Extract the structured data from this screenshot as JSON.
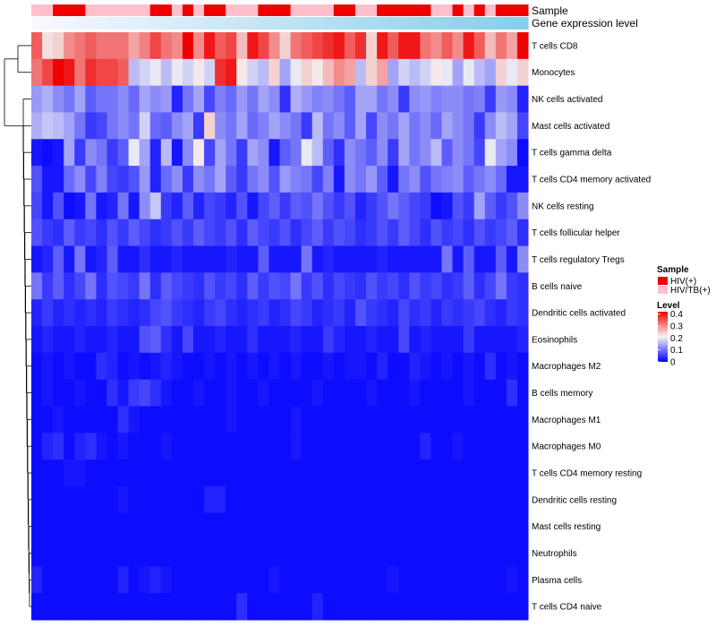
{
  "chart_data": {
    "type": "heatmap",
    "annotation_labels": [
      "Sample",
      "Gene expression level"
    ],
    "row_labels": [
      "T cells CD8",
      "Monocytes",
      "NK cells activated",
      "Mast cells activated",
      "T cells gamma delta",
      "T cells CD4 memory activated",
      "NK cells resting",
      "T cells follicular helper",
      "T cells regulatory  Tregs",
      "B cells naive",
      "Dendritic cells activated",
      "Eosinophils",
      "Macrophages M2",
      "B cells memory",
      "Macrophages M1",
      "Macrophages M0",
      "T cells CD4 memory resting",
      "Dendritic cells resting",
      "Mast cells resting",
      "Neutrophils",
      "Plasma cells",
      "T cells CD4 naive"
    ],
    "n_columns": 46,
    "sample_annotation": [
      "HIV/TB(+)",
      "HIV/TB(+)",
      "HIV(+)",
      "HIV(+)",
      "HIV(+)",
      "HIV/TB(+)",
      "HIV/TB(+)",
      "HIV/TB(+)",
      "HIV/TB(+)",
      "HIV/TB(+)",
      "HIV/TB(+)",
      "HIV(+)",
      "HIV(+)",
      "HIV/TB(+)",
      "HIV(+)",
      "HIV/TB(+)",
      "HIV(+)",
      "HIV(+)",
      "HIV/TB(+)",
      "HIV/TB(+)",
      "HIV/TB(+)",
      "HIV(+)",
      "HIV(+)",
      "HIV(+)",
      "HIV/TB(+)",
      "HIV/TB(+)",
      "HIV/TB(+)",
      "HIV/TB(+)",
      "HIV(+)",
      "HIV(+)",
      "HIV/TB(+)",
      "HIV/TB(+)",
      "HIV(+)",
      "HIV(+)",
      "HIV(+)",
      "HIV(+)",
      "HIV(+)",
      "HIV/TB(+)",
      "HIV/TB(+)",
      "HIV(+)",
      "HIV/TB(+)",
      "HIV(+)",
      "HIV/TB(+)",
      "HIV(+)",
      "HIV(+)",
      "HIV(+)"
    ],
    "expression_annotation": [
      0.0,
      0.02,
      0.04,
      0.07,
      0.09,
      0.11,
      0.13,
      0.16,
      0.18,
      0.2,
      0.22,
      0.24,
      0.27,
      0.29,
      0.31,
      0.33,
      0.36,
      0.38,
      0.4,
      0.42,
      0.44,
      0.47,
      0.49,
      0.51,
      0.53,
      0.56,
      0.58,
      0.6,
      0.62,
      0.64,
      0.67,
      0.69,
      0.71,
      0.73,
      0.76,
      0.78,
      0.8,
      0.82,
      0.84,
      0.87,
      0.89,
      0.91,
      0.93,
      0.96,
      0.98,
      1.0
    ],
    "values": [
      [
        0.34,
        0.23,
        0.24,
        0.3,
        0.32,
        0.34,
        0.32,
        0.32,
        0.32,
        0.28,
        0.31,
        0.36,
        0.32,
        0.3,
        0.42,
        0.3,
        0.4,
        0.34,
        0.36,
        0.26,
        0.4,
        0.36,
        0.3,
        0.24,
        0.32,
        0.34,
        0.36,
        0.38,
        0.4,
        0.34,
        0.38,
        0.24,
        0.4,
        0.34,
        0.4,
        0.4,
        0.32,
        0.3,
        0.34,
        0.3,
        0.4,
        0.34,
        0.26,
        0.32,
        0.28,
        0.42
      ],
      [
        0.32,
        0.36,
        0.42,
        0.4,
        0.32,
        0.38,
        0.36,
        0.36,
        0.34,
        0.16,
        0.18,
        0.2,
        0.16,
        0.2,
        0.18,
        0.22,
        0.18,
        0.38,
        0.4,
        0.22,
        0.18,
        0.16,
        0.24,
        0.14,
        0.2,
        0.24,
        0.22,
        0.26,
        0.3,
        0.28,
        0.16,
        0.24,
        0.28,
        0.14,
        0.18,
        0.16,
        0.18,
        0.22,
        0.2,
        0.14,
        0.2,
        0.16,
        0.14,
        0.24,
        0.2,
        0.24
      ],
      [
        0.13,
        0.15,
        0.12,
        0.1,
        0.14,
        0.08,
        0.1,
        0.1,
        0.12,
        0.09,
        0.14,
        0.12,
        0.13,
        0.03,
        0.1,
        0.14,
        0.06,
        0.11,
        0.09,
        0.13,
        0.1,
        0.14,
        0.12,
        0.04,
        0.15,
        0.13,
        0.11,
        0.12,
        0.1,
        0.08,
        0.14,
        0.14,
        0.1,
        0.12,
        0.05,
        0.12,
        0.13,
        0.11,
        0.12,
        0.12,
        0.1,
        0.11,
        0.05,
        0.13,
        0.12,
        0.03
      ],
      [
        0.15,
        0.17,
        0.16,
        0.14,
        0.1,
        0.05,
        0.06,
        0.1,
        0.12,
        0.1,
        0.18,
        0.09,
        0.08,
        0.12,
        0.14,
        0.05,
        0.24,
        0.12,
        0.1,
        0.14,
        0.09,
        0.11,
        0.14,
        0.12,
        0.1,
        0.05,
        0.16,
        0.1,
        0.12,
        0.08,
        0.14,
        0.06,
        0.12,
        0.1,
        0.14,
        0.1,
        0.12,
        0.09,
        0.14,
        0.12,
        0.1,
        0.05,
        0.12,
        0.16,
        0.14,
        0.06
      ],
      [
        0.02,
        0.01,
        0.02,
        0.14,
        0.05,
        0.12,
        0.1,
        0.05,
        0.08,
        0.2,
        0.14,
        0.03,
        0.16,
        0.02,
        0.12,
        0.22,
        0.06,
        0.14,
        0.1,
        0.05,
        0.14,
        0.12,
        0.02,
        0.08,
        0.1,
        0.2,
        0.16,
        0.08,
        0.04,
        0.12,
        0.1,
        0.08,
        0.12,
        0.05,
        0.14,
        0.1,
        0.12,
        0.16,
        0.08,
        0.12,
        0.1,
        0.06,
        0.2,
        0.14,
        0.12,
        0.01
      ],
      [
        0.07,
        0.02,
        0.02,
        0.09,
        0.12,
        0.06,
        0.11,
        0.06,
        0.05,
        0.07,
        0.13,
        0.03,
        0.09,
        0.12,
        0.05,
        0.12,
        0.1,
        0.14,
        0.08,
        0.05,
        0.1,
        0.12,
        0.07,
        0.13,
        0.11,
        0.1,
        0.06,
        0.11,
        0.02,
        0.12,
        0.1,
        0.13,
        0.08,
        0.02,
        0.1,
        0.12,
        0.07,
        0.1,
        0.11,
        0.12,
        0.08,
        0.1,
        0.12,
        0.09,
        0.02,
        0.02
      ],
      [
        0.06,
        0.02,
        0.07,
        0.01,
        0.02,
        0.1,
        0.02,
        0.03,
        0.1,
        0.02,
        0.12,
        0.17,
        0.05,
        0.03,
        0.08,
        0.03,
        0.06,
        0.05,
        0.03,
        0.07,
        0.02,
        0.06,
        0.08,
        0.05,
        0.08,
        0.07,
        0.1,
        0.07,
        0.05,
        0.07,
        0.03,
        0.05,
        0.07,
        0.1,
        0.08,
        0.06,
        0.05,
        0.01,
        0.02,
        0.07,
        0.05,
        0.14,
        0.08,
        0.05,
        0.07,
        0.12
      ],
      [
        0.07,
        0.05,
        0.04,
        0.08,
        0.05,
        0.06,
        0.04,
        0.07,
        0.05,
        0.08,
        0.06,
        0.04,
        0.05,
        0.07,
        0.05,
        0.08,
        0.06,
        0.05,
        0.07,
        0.04,
        0.08,
        0.06,
        0.05,
        0.07,
        0.04,
        0.06,
        0.08,
        0.05,
        0.07,
        0.06,
        0.04,
        0.05,
        0.07,
        0.05,
        0.08,
        0.06,
        0.04,
        0.07,
        0.05,
        0.06,
        0.04,
        0.07,
        0.05,
        0.06,
        0.08,
        0.04
      ],
      [
        0.02,
        0.03,
        0.08,
        0.02,
        0.1,
        0.02,
        0.03,
        0.08,
        0.02,
        0.02,
        0.04,
        0.02,
        0.02,
        0.03,
        0.02,
        0.02,
        0.02,
        0.02,
        0.03,
        0.02,
        0.02,
        0.08,
        0.02,
        0.02,
        0.02,
        0.1,
        0.02,
        0.03,
        0.02,
        0.02,
        0.02,
        0.02,
        0.03,
        0.02,
        0.02,
        0.02,
        0.02,
        0.02,
        0.1,
        0.02,
        0.08,
        0.02,
        0.02,
        0.08,
        0.02,
        0.12
      ],
      [
        0.1,
        0.05,
        0.08,
        0.04,
        0.06,
        0.1,
        0.04,
        0.07,
        0.06,
        0.05,
        0.1,
        0.04,
        0.08,
        0.06,
        0.05,
        0.04,
        0.07,
        0.05,
        0.06,
        0.04,
        0.08,
        0.05,
        0.07,
        0.06,
        0.1,
        0.05,
        0.07,
        0.04,
        0.06,
        0.05,
        0.04,
        0.07,
        0.05,
        0.06,
        0.04,
        0.07,
        0.05,
        0.06,
        0.04,
        0.05,
        0.08,
        0.04,
        0.06,
        0.1,
        0.05,
        0.04
      ],
      [
        0.03,
        0.05,
        0.03,
        0.04,
        0.03,
        0.04,
        0.03,
        0.05,
        0.04,
        0.03,
        0.04,
        0.06,
        0.07,
        0.05,
        0.04,
        0.03,
        0.05,
        0.06,
        0.04,
        0.03,
        0.04,
        0.05,
        0.03,
        0.04,
        0.06,
        0.05,
        0.03,
        0.04,
        0.05,
        0.03,
        0.07,
        0.05,
        0.04,
        0.03,
        0.06,
        0.04,
        0.05,
        0.03,
        0.05,
        0.04,
        0.05,
        0.06,
        0.04,
        0.03,
        0.05,
        0.04
      ],
      [
        0.02,
        0.03,
        0.02,
        0.02,
        0.03,
        0.02,
        0.02,
        0.03,
        0.02,
        0.02,
        0.07,
        0.08,
        0.04,
        0.02,
        0.06,
        0.02,
        0.02,
        0.03,
        0.02,
        0.02,
        0.04,
        0.02,
        0.02,
        0.02,
        0.03,
        0.02,
        0.02,
        0.05,
        0.03,
        0.02,
        0.02,
        0.03,
        0.02,
        0.02,
        0.06,
        0.02,
        0.03,
        0.02,
        0.02,
        0.02,
        0.05,
        0.02,
        0.02,
        0.02,
        0.02,
        0.03
      ],
      [
        0.01,
        0.02,
        0.01,
        0.02,
        0.01,
        0.01,
        0.04,
        0.03,
        0.01,
        0.02,
        0.01,
        0.02,
        0.03,
        0.02,
        0.01,
        0.01,
        0.02,
        0.01,
        0.02,
        0.01,
        0.02,
        0.01,
        0.02,
        0.01,
        0.02,
        0.01,
        0.01,
        0.02,
        0.01,
        0.02,
        0.02,
        0.01,
        0.03,
        0.01,
        0.01,
        0.03,
        0.02,
        0.01,
        0.02,
        0.01,
        0.02,
        0.01,
        0.04,
        0.01,
        0.02,
        0.01
      ],
      [
        0.01,
        0.02,
        0.01,
        0.01,
        0.02,
        0.01,
        0.01,
        0.04,
        0.02,
        0.05,
        0.06,
        0.04,
        0.02,
        0.01,
        0.01,
        0.02,
        0.01,
        0.01,
        0.02,
        0.01,
        0.01,
        0.02,
        0.01,
        0.01,
        0.01,
        0.01,
        0.02,
        0.01,
        0.01,
        0.01,
        0.01,
        0.02,
        0.01,
        0.01,
        0.01,
        0.02,
        0.01,
        0.01,
        0.01,
        0.01,
        0.02,
        0.01,
        0.01,
        0.01,
        0.04,
        0.01
      ],
      [
        0.01,
        0.01,
        0.02,
        0.01,
        0.01,
        0.01,
        0.01,
        0.01,
        0.04,
        0.02,
        0.01,
        0.01,
        0.01,
        0.01,
        0.01,
        0.01,
        0.01,
        0.01,
        0.02,
        0.01,
        0.01,
        0.01,
        0.01,
        0.01,
        0.02,
        0.01,
        0.01,
        0.01,
        0.01,
        0.01,
        0.01,
        0.01,
        0.01,
        0.01,
        0.01,
        0.01,
        0.01,
        0.01,
        0.01,
        0.01,
        0.01,
        0.01,
        0.01,
        0.01,
        0.01,
        0.01
      ],
      [
        0.01,
        0.03,
        0.04,
        0.01,
        0.03,
        0.04,
        0.02,
        0.01,
        0.02,
        0.01,
        0.01,
        0.01,
        0.02,
        0.01,
        0.01,
        0.01,
        0.01,
        0.01,
        0.01,
        0.01,
        0.01,
        0.01,
        0.01,
        0.01,
        0.02,
        0.01,
        0.01,
        0.01,
        0.01,
        0.01,
        0.01,
        0.01,
        0.01,
        0.01,
        0.01,
        0.01,
        0.03,
        0.01,
        0.01,
        0.02,
        0.01,
        0.01,
        0.01,
        0.01,
        0.01,
        0.01
      ],
      [
        0.01,
        0.01,
        0.01,
        0.02,
        0.02,
        0.01,
        0.01,
        0.01,
        0.01,
        0.01,
        0.01,
        0.01,
        0.01,
        0.01,
        0.01,
        0.01,
        0.01,
        0.01,
        0.01,
        0.01,
        0.01,
        0.01,
        0.01,
        0.01,
        0.01,
        0.01,
        0.01,
        0.01,
        0.01,
        0.01,
        0.01,
        0.01,
        0.01,
        0.01,
        0.01,
        0.01,
        0.01,
        0.01,
        0.01,
        0.01,
        0.01,
        0.01,
        0.01,
        0.01,
        0.01,
        0.01
      ],
      [
        0.01,
        0.01,
        0.01,
        0.01,
        0.01,
        0.01,
        0.01,
        0.01,
        0.02,
        0.01,
        0.01,
        0.01,
        0.01,
        0.01,
        0.01,
        0.01,
        0.03,
        0.03,
        0.01,
        0.01,
        0.01,
        0.01,
        0.01,
        0.01,
        0.01,
        0.01,
        0.01,
        0.01,
        0.01,
        0.01,
        0.01,
        0.01,
        0.01,
        0.01,
        0.01,
        0.01,
        0.01,
        0.01,
        0.01,
        0.01,
        0.01,
        0.01,
        0.01,
        0.01,
        0.01,
        0.01
      ],
      [
        0.01,
        0.01,
        0.01,
        0.01,
        0.01,
        0.01,
        0.01,
        0.01,
        0.01,
        0.01,
        0.01,
        0.01,
        0.01,
        0.01,
        0.01,
        0.01,
        0.01,
        0.01,
        0.01,
        0.01,
        0.01,
        0.01,
        0.01,
        0.01,
        0.01,
        0.01,
        0.01,
        0.01,
        0.01,
        0.01,
        0.01,
        0.01,
        0.01,
        0.01,
        0.01,
        0.01,
        0.01,
        0.01,
        0.01,
        0.01,
        0.01,
        0.01,
        0.01,
        0.01,
        0.01,
        0.01
      ],
      [
        0.01,
        0.01,
        0.01,
        0.01,
        0.01,
        0.01,
        0.01,
        0.01,
        0.01,
        0.01,
        0.01,
        0.01,
        0.01,
        0.01,
        0.01,
        0.01,
        0.01,
        0.01,
        0.01,
        0.01,
        0.01,
        0.01,
        0.01,
        0.01,
        0.01,
        0.01,
        0.01,
        0.01,
        0.01,
        0.01,
        0.01,
        0.01,
        0.01,
        0.01,
        0.01,
        0.01,
        0.01,
        0.01,
        0.01,
        0.01,
        0.01,
        0.01,
        0.01,
        0.01,
        0.01,
        0.01
      ],
      [
        0.03,
        0.01,
        0.01,
        0.01,
        0.01,
        0.01,
        0.01,
        0.01,
        0.03,
        0.01,
        0.02,
        0.03,
        0.02,
        0.01,
        0.01,
        0.01,
        0.01,
        0.01,
        0.01,
        0.01,
        0.01,
        0.01,
        0.02,
        0.01,
        0.01,
        0.01,
        0.01,
        0.01,
        0.01,
        0.01,
        0.01,
        0.01,
        0.01,
        0.02,
        0.01,
        0.01,
        0.01,
        0.01,
        0.01,
        0.01,
        0.01,
        0.01,
        0.01,
        0.01,
        0.02,
        0.01
      ],
      [
        0.01,
        0.01,
        0.01,
        0.01,
        0.01,
        0.01,
        0.01,
        0.01,
        0.01,
        0.01,
        0.01,
        0.01,
        0.01,
        0.01,
        0.01,
        0.01,
        0.01,
        0.01,
        0.01,
        0.04,
        0.01,
        0.01,
        0.01,
        0.01,
        0.01,
        0.01,
        0.03,
        0.01,
        0.01,
        0.01,
        0.01,
        0.01,
        0.01,
        0.01,
        0.01,
        0.01,
        0.01,
        0.01,
        0.01,
        0.01,
        0.01,
        0.01,
        0.01,
        0.01,
        0.01,
        0.01
      ]
    ],
    "legend_sample": {
      "title": "Sample",
      "entries": [
        {
          "label": "HIV(+)",
          "color": "#ee0000"
        },
        {
          "label": "HIV/TB(+)",
          "color": "#ffc0cb"
        }
      ]
    },
    "legend_level": {
      "title": "Level",
      "ticks": [
        "0.4",
        "0.3",
        "0.2",
        "0.1",
        "0"
      ],
      "tick_values": [
        0.4,
        0.3,
        0.2,
        0.1,
        0.0
      ],
      "range": [
        0,
        0.42
      ],
      "low_color": "#0000ff",
      "mid_color": "#f5f5f5",
      "high_color": "#ee0000"
    },
    "expression_colors": [
      "#f8f8ff",
      "#87ceeb"
    ]
  }
}
